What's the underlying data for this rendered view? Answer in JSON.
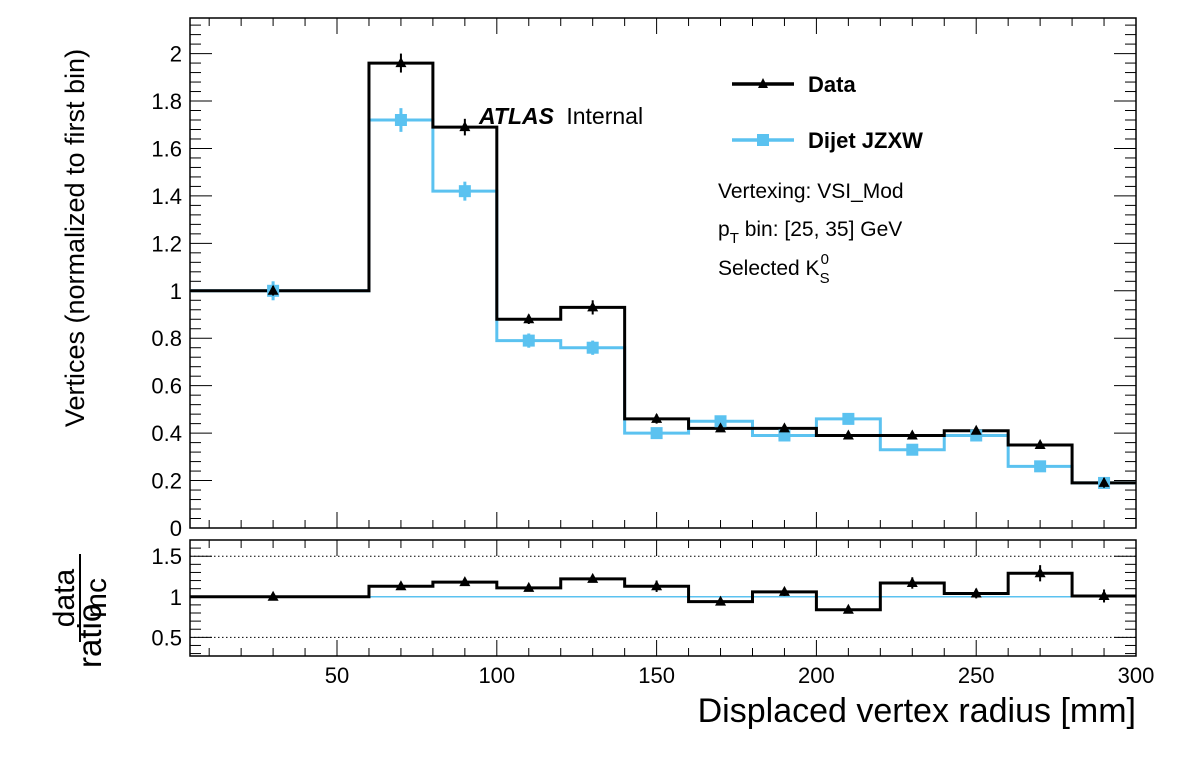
{
  "chart_data": [
    {
      "type": "line",
      "style": "step-histogram",
      "xlabel": "Displaced vertex radius [mm]",
      "ylabel": "Vertices (normalized to first bin)",
      "xlim": [
        4,
        300
      ],
      "ylim": [
        0,
        2.15
      ],
      "yticks": [
        0,
        0.2,
        0.4,
        0.6,
        0.8,
        1,
        1.2,
        1.4,
        1.6,
        1.8,
        2
      ],
      "ytick_labels": [
        "0",
        "0.2",
        "0.4",
        "0.6",
        "0.8",
        "1",
        "1.2",
        "1.4",
        "1.6",
        "1.8",
        "2"
      ],
      "bin_edges": [
        4,
        60,
        80,
        100,
        120,
        140,
        160,
        180,
        200,
        220,
        240,
        260,
        280,
        300
      ],
      "x": [
        30,
        70,
        90,
        110,
        130,
        150,
        170,
        190,
        210,
        230,
        250,
        270,
        290
      ],
      "series": [
        {
          "name": "Data",
          "color": "#000000",
          "marker": "triangle",
          "values": [
            1.0,
            1.96,
            1.69,
            0.88,
            0.93,
            0.46,
            0.42,
            0.42,
            0.39,
            0.39,
            0.41,
            0.35,
            0.19
          ],
          "errors": [
            0.02,
            0.04,
            0.035,
            0.02,
            0.03,
            0.02,
            0.015,
            0.015,
            0.015,
            0.015,
            0.015,
            0.015,
            0.02
          ]
        },
        {
          "name": "Dijet JZXW",
          "color": "#5bc2f0",
          "marker": "square",
          "values": [
            1.0,
            1.72,
            1.42,
            0.79,
            0.76,
            0.4,
            0.45,
            0.39,
            0.46,
            0.33,
            0.39,
            0.26,
            0.19
          ],
          "errors": [
            0.04,
            0.05,
            0.04,
            0.03,
            0.03,
            0.015,
            0.015,
            0.015,
            0.015,
            0.015,
            0.015,
            0.015,
            0.015
          ]
        }
      ],
      "legend_position": "top-right",
      "grid": false
    },
    {
      "type": "line",
      "style": "step-histogram",
      "ylabel_prefix": "ratio",
      "ylabel_numerator": "data",
      "ylabel_denominator": "mc",
      "xlabel": "Displaced vertex radius [mm]",
      "xlim": [
        4,
        300
      ],
      "ylim": [
        0.27,
        1.7
      ],
      "xticks": [
        50,
        100,
        150,
        200,
        250,
        300
      ],
      "xtick_labels": [
        "50",
        "100",
        "150",
        "200",
        "250",
        "300"
      ],
      "yticks": [
        0.5,
        1,
        1.5
      ],
      "ytick_labels": [
        "0.5",
        "1",
        "1.5"
      ],
      "dotted_lines": [
        0.5,
        1.5
      ],
      "reference_line": 1,
      "bin_edges": [
        4,
        60,
        80,
        100,
        120,
        140,
        160,
        180,
        200,
        220,
        240,
        260,
        280,
        300
      ],
      "x": [
        30,
        70,
        90,
        110,
        130,
        150,
        170,
        190,
        210,
        230,
        250,
        270,
        290
      ],
      "values": [
        1.0,
        1.13,
        1.18,
        1.11,
        1.22,
        1.13,
        0.94,
        1.06,
        0.84,
        1.17,
        1.04,
        1.29,
        1.01
      ],
      "errors": [
        0.02,
        0.04,
        0.04,
        0.03,
        0.04,
        0.07,
        0.03,
        0.05,
        0.03,
        0.07,
        0.06,
        0.1,
        0.08
      ],
      "color": "#000000",
      "reference_color": "#5bc2f0"
    }
  ],
  "annotations": {
    "atlas_bold": "ATLAS",
    "atlas_label": "Internal",
    "vertexing": "Vertexing: VSI_Mod",
    "pt_p": "p",
    "pt_sub": "T",
    "pt_rest": " bin: [25, 35] GeV",
    "selected_text": "Selected K",
    "selected_sub": "S",
    "selected_sup": "0"
  }
}
